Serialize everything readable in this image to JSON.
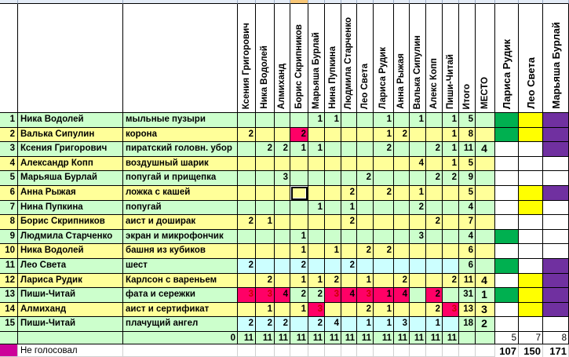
{
  "columns": [
    "Ксения Григорович",
    "Ника Водолей",
    "Алмиханд",
    "Борис Скрипников",
    "Марьяша Бурлай",
    "Нина Пупкина",
    "Людмила Старченко",
    "Лео Света",
    "Лариса Рудик",
    "Анна Рыжая",
    "Валька Сипулин",
    "Алекс Копп",
    "Пиши-Читай"
  ],
  "total_header": "Итого",
  "place_header": "МЕСТО",
  "judges": [
    {
      "name": "Лариса Рудик",
      "color": "#00b050"
    },
    {
      "name": "Лео Света",
      "color": "#ffff00"
    },
    {
      "name": "Марьяша Бурлай",
      "color": "#7030a0"
    }
  ],
  "colors": {
    "even_row": "#ffff99",
    "odd_row": "#ccffcc",
    "highlight_row": "#ccffff",
    "over_limit": "#ff0066",
    "not_voted": "#cc0099"
  },
  "rows": [
    {
      "num": "1",
      "name": "Ника Водолей",
      "item": "мыльные пузыри",
      "votes": [
        null,
        null,
        null,
        null,
        1,
        1,
        null,
        null,
        1,
        null,
        1,
        null,
        1
      ],
      "red": [],
      "total": "5",
      "place": "",
      "marks": [
        1,
        1,
        1
      ]
    },
    {
      "num": "2",
      "name": "Валька Сипулин",
      "item": "корона",
      "votes": [
        2,
        null,
        null,
        2,
        null,
        null,
        null,
        null,
        1,
        2,
        null,
        null,
        1
      ],
      "red": [
        3
      ],
      "total": "8",
      "place": "",
      "marks": [
        1,
        1,
        1
      ]
    },
    {
      "num": "3",
      "name": "Ксения Григорович",
      "item": "пиратский головн. убор",
      "votes": [
        null,
        2,
        2,
        1,
        1,
        null,
        null,
        null,
        2,
        null,
        null,
        2,
        1
      ],
      "red": [],
      "total": "11",
      "place": "4",
      "marks": [
        0,
        0,
        1
      ]
    },
    {
      "num": "4",
      "name": "Александр Копп",
      "item": "воздушный шарик",
      "votes": [
        null,
        null,
        null,
        null,
        null,
        null,
        null,
        null,
        null,
        null,
        4,
        null,
        1
      ],
      "red": [],
      "total": "5",
      "place": "",
      "marks": [
        0,
        0,
        0
      ]
    },
    {
      "num": "5",
      "name": "Марьяша Бурлай",
      "item": "попугай и прищепка",
      "votes": [
        null,
        null,
        3,
        null,
        null,
        null,
        null,
        2,
        null,
        null,
        null,
        2,
        2
      ],
      "red": [],
      "total": "9",
      "place": "",
      "marks": [
        0,
        0,
        0
      ]
    },
    {
      "num": "6",
      "name": "Анна Рыжая",
      "item": "ложка с кашей",
      "votes": [
        null,
        null,
        null,
        null,
        null,
        null,
        2,
        null,
        2,
        null,
        1,
        null,
        null
      ],
      "red": [],
      "total": "5",
      "place": "",
      "marks": [
        0,
        1,
        1
      ]
    },
    {
      "num": "7",
      "name": "Нина Пупкина",
      "item": "попугай",
      "votes": [
        null,
        null,
        null,
        null,
        1,
        null,
        1,
        null,
        null,
        null,
        2,
        null,
        null
      ],
      "red": [],
      "total": "4",
      "place": "",
      "marks": [
        0,
        1,
        0
      ]
    },
    {
      "num": "8",
      "name": "Борис Скрипников",
      "item": "аист и доширак",
      "votes": [
        2,
        1,
        null,
        null,
        null,
        null,
        2,
        null,
        null,
        null,
        null,
        2,
        null
      ],
      "red": [],
      "total": "7",
      "place": "",
      "marks": [
        0,
        0,
        0
      ]
    },
    {
      "num": "9",
      "name": "Людмила Старченко",
      "item": "экран и микрофончик",
      "votes": [
        null,
        null,
        null,
        1,
        null,
        null,
        null,
        null,
        null,
        null,
        3,
        null,
        null
      ],
      "red": [],
      "total": "4",
      "place": "",
      "marks": [
        1,
        0,
        0
      ]
    },
    {
      "num": "10",
      "name": "Ника Водолей",
      "item": "башня из кубиков",
      "votes": [
        null,
        null,
        null,
        1,
        null,
        1,
        null,
        2,
        2,
        null,
        null,
        null,
        null
      ],
      "red": [],
      "total": "6",
      "place": "",
      "marks": [
        0,
        0,
        0
      ]
    },
    {
      "num": "11",
      "name": "Лео Света",
      "item": "шест",
      "votes": [
        2,
        null,
        null,
        2,
        null,
        null,
        2,
        null,
        null,
        null,
        null,
        null,
        null
      ],
      "red": [],
      "total": "6",
      "place": "",
      "marks": [
        1,
        0,
        1
      ],
      "highlight": true
    },
    {
      "num": "12",
      "name": "Лариса Рудик",
      "item": "Карлсон с вареньем",
      "votes": [
        null,
        2,
        null,
        1,
        1,
        2,
        null,
        1,
        null,
        2,
        null,
        null,
        2
      ],
      "red": [],
      "total": "11",
      "place": "4",
      "marks": [
        0,
        1,
        1
      ]
    },
    {
      "num": "13",
      "name": "Пиши-Читай",
      "item": "фата и сережки",
      "votes": [
        3,
        3,
        4,
        2,
        2,
        3,
        4,
        3,
        1,
        4,
        null,
        2,
        null
      ],
      "red": [
        0,
        1,
        2,
        5,
        6,
        7,
        8,
        9,
        11
      ],
      "total": "31",
      "place": "1",
      "marks": [
        1,
        1,
        1
      ]
    },
    {
      "num": "14",
      "name": "Алмиханд",
      "item": "аист и сертификат",
      "votes": [
        null,
        1,
        null,
        1,
        3,
        null,
        null,
        2,
        1,
        null,
        null,
        2,
        3
      ],
      "red": [
        4,
        12
      ],
      "total": "13",
      "place": "3",
      "marks": [
        0,
        1,
        1
      ]
    },
    {
      "num": "15",
      "name": "Пиши-Читай",
      "item": "плачущий ангел",
      "votes": [
        2,
        2,
        2,
        null,
        2,
        4,
        null,
        1,
        1,
        3,
        null,
        1,
        null
      ],
      "red": [],
      "total": "18",
      "place": "2",
      "marks": [
        0,
        0,
        0
      ],
      "highlight": true
    }
  ],
  "totals_row": {
    "label": "0",
    "counts": [
      "11",
      "11",
      "11",
      "11",
      "11",
      "11",
      "11",
      "11",
      "11",
      "11",
      "11",
      "11",
      "11"
    ],
    "judge_counts": [
      "5",
      "7",
      "8"
    ]
  },
  "legend": {
    "label": "Не голосовал"
  },
  "judge_sums": [
    "107",
    "150",
    "171"
  ],
  "selected_cell": {
    "row": "6",
    "column": "Борис Скрипников"
  }
}
